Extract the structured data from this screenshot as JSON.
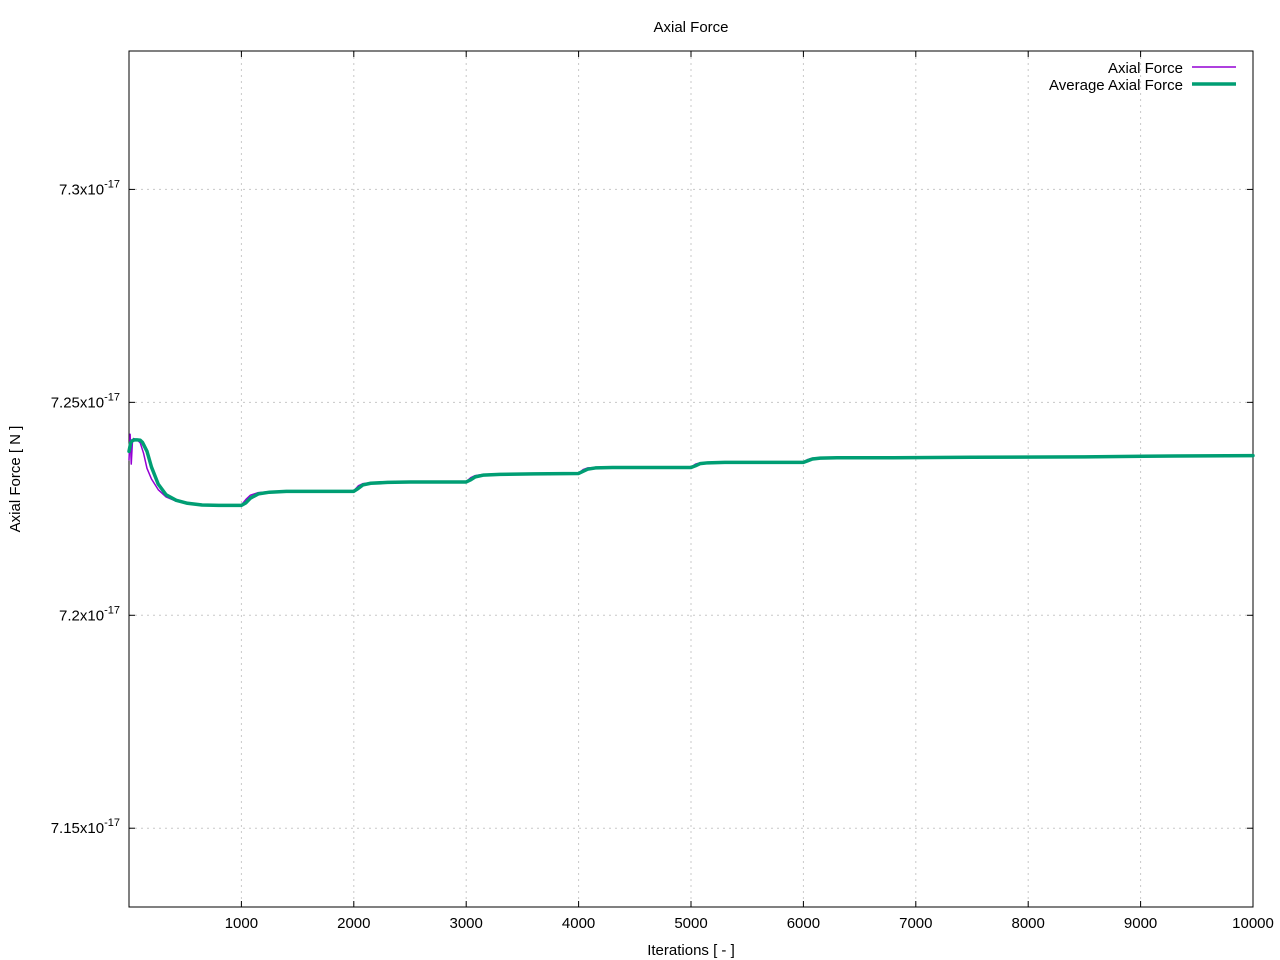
{
  "chart_data": {
    "type": "line",
    "title": "Axial Force",
    "xlabel": "Iterations [ - ]",
    "ylabel": "Axial Force [ N ]",
    "xlim": [
      0,
      10000
    ],
    "ylim": [
      7.1315e-17,
      7.3325e-17
    ],
    "grid": true,
    "legend_position": "top-right",
    "x_ticks": [
      1000,
      2000,
      3000,
      4000,
      5000,
      6000,
      7000,
      8000,
      9000,
      10000
    ],
    "x_tick_labels": [
      "1000",
      "2000",
      "3000",
      "4000",
      "5000",
      "6000",
      "7000",
      "8000",
      "9000",
      "10000"
    ],
    "y_ticks": [
      7.15e-17,
      7.2e-17,
      7.25e-17,
      7.3e-17
    ],
    "y_tick_labels": [
      {
        "mantissa": "7.15x10",
        "exponent": "-17"
      },
      {
        "mantissa": "7.2x10",
        "exponent": "-17"
      },
      {
        "mantissa": "7.25x10",
        "exponent": "-17"
      },
      {
        "mantissa": "7.3x10",
        "exponent": "-17"
      }
    ],
    "series": [
      {
        "name": "Axial Force",
        "color": "#9400d3",
        "line_width": 1.5,
        "x": [
          0,
          10,
          20,
          30,
          40,
          60,
          80,
          100,
          130,
          160,
          200,
          260,
          330,
          420,
          520,
          650,
          800,
          950,
          1000,
          1040,
          1080,
          1150,
          1250,
          1400,
          1600,
          1800,
          2000,
          2040,
          2080,
          2150,
          2300,
          2500,
          2800,
          3000,
          3040,
          3080,
          3150,
          3300,
          3600,
          4000,
          4040,
          4080,
          4150,
          4300,
          4600,
          5000,
          5040,
          5080,
          5150,
          5300,
          5600,
          6000,
          6040,
          6080,
          6150,
          6300,
          6800,
          7500,
          8500,
          9300,
          10000
        ],
        "y": [
          7.2365e-17,
          7.2425e-17,
          7.2355e-17,
          7.2405e-17,
          7.2415e-17,
          7.2412e-17,
          7.241e-17,
          7.2405e-17,
          7.238e-17,
          7.2345e-17,
          7.232e-17,
          7.2295e-17,
          7.2278e-17,
          7.2268e-17,
          7.2262e-17,
          7.2259e-17,
          7.2258e-17,
          7.2258e-17,
          7.2259e-17,
          7.2272e-17,
          7.2282e-17,
          7.2288e-17,
          7.229e-17,
          7.2291e-17,
          7.2291e-17,
          7.2291e-17,
          7.2292e-17,
          7.2304e-17,
          7.2309e-17,
          7.2311e-17,
          7.2312e-17,
          7.2313e-17,
          7.2313e-17,
          7.2314e-17,
          7.2323e-17,
          7.2328e-17,
          7.2331e-17,
          7.2332e-17,
          7.2332e-17,
          7.2334e-17,
          7.2342e-17,
          7.2346e-17,
          7.2347e-17,
          7.2347e-17,
          7.2347e-17,
          7.2348e-17,
          7.2355e-17,
          7.2358e-17,
          7.2359e-17,
          7.2359e-17,
          7.2359e-17,
          7.236e-17,
          7.2366e-17,
          7.2369e-17,
          7.237e-17,
          7.237e-17,
          7.237e-17,
          7.2371e-17,
          7.2372e-17,
          7.2374e-17,
          7.2375e-17
        ]
      },
      {
        "name": "Average Axial Force",
        "color": "#009e73",
        "line_width": 3.5,
        "x": [
          0,
          15,
          30,
          50,
          70,
          100,
          120,
          160,
          200,
          260,
          330,
          420,
          520,
          650,
          800,
          950,
          1000,
          1040,
          1080,
          1150,
          1250,
          1400,
          1600,
          1800,
          2000,
          2040,
          2080,
          2150,
          2300,
          2500,
          2800,
          3000,
          3040,
          3080,
          3150,
          3300,
          3600,
          4000,
          4040,
          4080,
          4150,
          4300,
          4600,
          5000,
          5040,
          5080,
          5150,
          5300,
          5600,
          6000,
          6040,
          6080,
          6150,
          6300,
          6800,
          7500,
          8500,
          9300,
          10000
        ],
        "y": [
          7.2385e-17,
          7.2405e-17,
          7.241e-17,
          7.2412e-17,
          7.2412e-17,
          7.2411e-17,
          7.2406e-17,
          7.2385e-17,
          7.2348e-17,
          7.2308e-17,
          7.2283e-17,
          7.227e-17,
          7.2263e-17,
          7.2259e-17,
          7.2258e-17,
          7.2258e-17,
          7.2258e-17,
          7.2264e-17,
          7.2275e-17,
          7.2285e-17,
          7.2289e-17,
          7.2291e-17,
          7.2291e-17,
          7.2291e-17,
          7.2291e-17,
          7.2298e-17,
          7.2306e-17,
          7.231e-17,
          7.2312e-17,
          7.2313e-17,
          7.2313e-17,
          7.2313e-17,
          7.2318e-17,
          7.2325e-17,
          7.2329e-17,
          7.2331e-17,
          7.2332e-17,
          7.2333e-17,
          7.2338e-17,
          7.2343e-17,
          7.2346e-17,
          7.2347e-17,
          7.2347e-17,
          7.2347e-17,
          7.2351e-17,
          7.2356e-17,
          7.2358e-17,
          7.2359e-17,
          7.2359e-17,
          7.2359e-17,
          7.2363e-17,
          7.2367e-17,
          7.2369e-17,
          7.237e-17,
          7.237e-17,
          7.2371e-17,
          7.2372e-17,
          7.2374e-17,
          7.2375e-17
        ]
      }
    ]
  }
}
